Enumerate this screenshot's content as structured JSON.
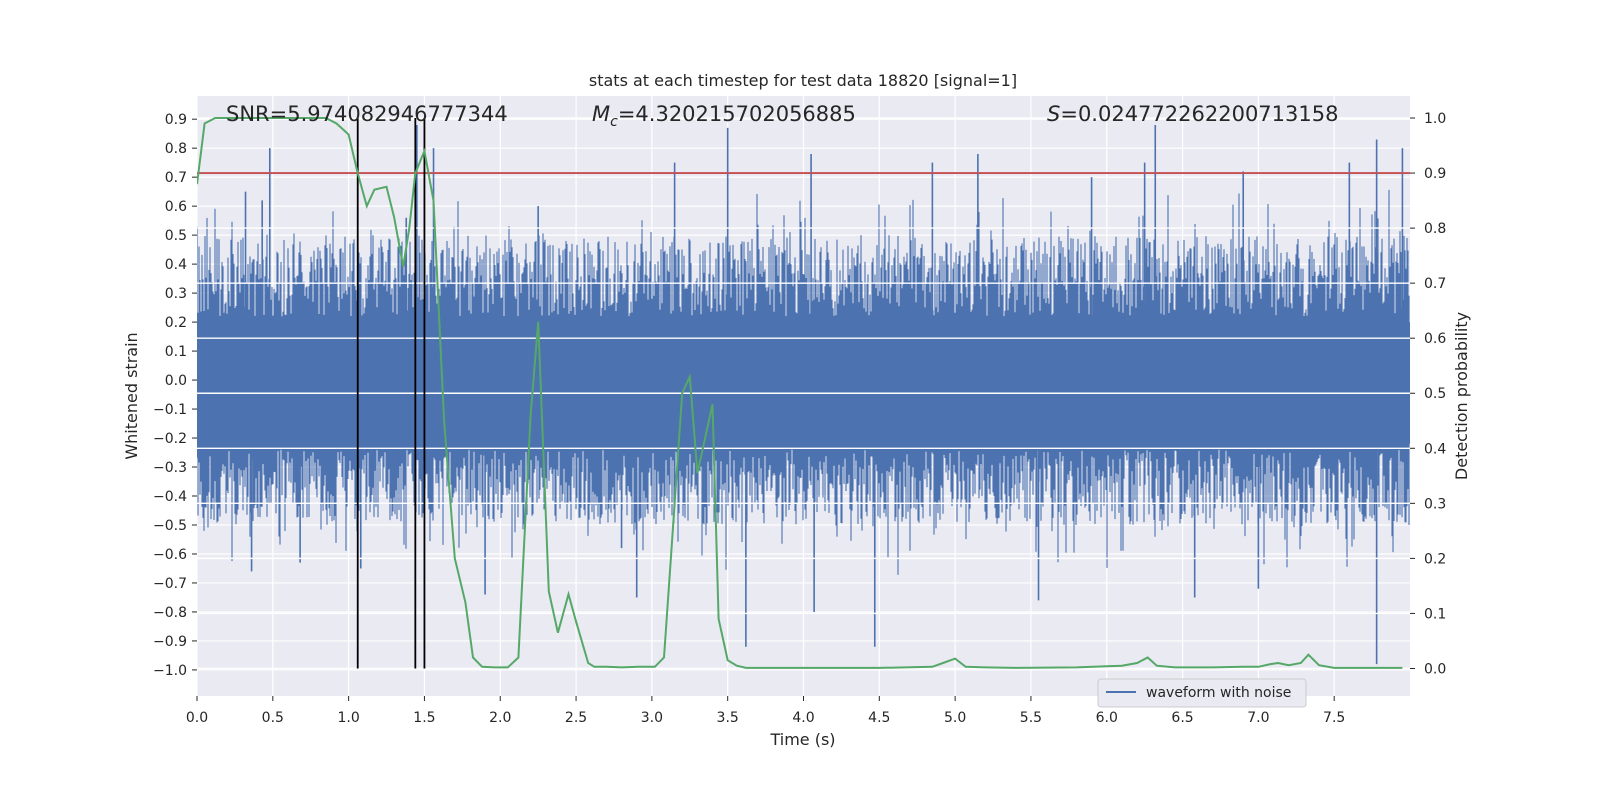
{
  "chart_data": {
    "type": "line",
    "title": "stats at each timestep for test data 18820 [signal=1]",
    "annotations": {
      "snr": "SNR=5.974082946777344",
      "mc_symbol": "M",
      "mc_subscript": "c",
      "mc_value": "=4.320215702056885",
      "s_symbol": "S",
      "s_value": "=0.024772262200713158"
    },
    "xlabel": "Time (s)",
    "ylabel_left": "Whitened strain",
    "ylabel_right": "Detection probability",
    "xlim": [
      0.0,
      8.0
    ],
    "ylim_left": [
      -1.09,
      0.98
    ],
    "ylim_right": [
      -0.05,
      1.04
    ],
    "x_ticks": [
      "0.0",
      "0.5",
      "1.0",
      "1.5",
      "2.0",
      "2.5",
      "3.0",
      "3.5",
      "4.0",
      "4.5",
      "5.0",
      "5.5",
      "6.0",
      "6.5",
      "7.0",
      "7.5"
    ],
    "x_tick_values": [
      0.0,
      0.5,
      1.0,
      1.5,
      2.0,
      2.5,
      3.0,
      3.5,
      4.0,
      4.5,
      5.0,
      5.5,
      6.0,
      6.5,
      7.0,
      7.5
    ],
    "y_ticks_left": [
      "0.9",
      "0.8",
      "0.7",
      "0.6",
      "0.5",
      "0.4",
      "0.3",
      "0.2",
      "0.1",
      "0.0",
      "−0.1",
      "−0.2",
      "−0.3",
      "−0.4",
      "−0.5",
      "−0.6",
      "−0.7",
      "−0.8",
      "−0.9",
      "−1.0"
    ],
    "y_tick_values_left": [
      0.9,
      0.8,
      0.7,
      0.6,
      0.5,
      0.4,
      0.3,
      0.2,
      0.1,
      0.0,
      -0.1,
      -0.2,
      -0.3,
      -0.4,
      -0.5,
      -0.6,
      -0.7,
      -0.8,
      -0.9,
      -1.0
    ],
    "y_ticks_right": [
      "1.0",
      "0.9",
      "0.8",
      "0.7",
      "0.6",
      "0.5",
      "0.4",
      "0.3",
      "0.2",
      "0.1",
      "0.0"
    ],
    "y_tick_values_right": [
      1.0,
      0.9,
      0.8,
      0.7,
      0.6,
      0.5,
      0.4,
      0.3,
      0.2,
      0.1,
      0.0
    ],
    "threshold": 0.9,
    "vertical_markers": [
      1.06,
      1.44,
      1.5
    ],
    "series": [
      {
        "name": "waveform with noise",
        "axis": "left",
        "color": "#4c72b0",
        "kind": "dense noisy strain, spikes",
        "spikes": [
          {
            "x": 0.32,
            "y": 0.65
          },
          {
            "x": 0.43,
            "y": 0.62
          },
          {
            "x": 0.48,
            "y": 0.8
          },
          {
            "x": 0.36,
            "y": -0.66
          },
          {
            "x": 0.68,
            "y": -0.63
          },
          {
            "x": 1.08,
            "y": -0.65
          },
          {
            "x": 1.45,
            "y": 0.88
          },
          {
            "x": 1.38,
            "y": 0.56
          },
          {
            "x": 1.56,
            "y": 0.8
          },
          {
            "x": 1.9,
            "y": -0.74
          },
          {
            "x": 2.25,
            "y": 0.6
          },
          {
            "x": 2.8,
            "y": -0.58
          },
          {
            "x": 2.9,
            "y": -0.75
          },
          {
            "x": 3.15,
            "y": 0.75
          },
          {
            "x": 3.5,
            "y": 0.87
          },
          {
            "x": 3.62,
            "y": -0.92
          },
          {
            "x": 4.05,
            "y": 0.78
          },
          {
            "x": 4.07,
            "y": -0.8
          },
          {
            "x": 4.47,
            "y": -0.92
          },
          {
            "x": 4.85,
            "y": 0.75
          },
          {
            "x": 5.15,
            "y": 0.78
          },
          {
            "x": 5.55,
            "y": -0.76
          },
          {
            "x": 6.25,
            "y": 0.75
          },
          {
            "x": 6.32,
            "y": 0.88
          },
          {
            "x": 6.58,
            "y": -0.75
          },
          {
            "x": 7.0,
            "y": -0.72
          },
          {
            "x": 7.6,
            "y": 0.75
          },
          {
            "x": 7.78,
            "y": 0.83
          },
          {
            "x": 7.78,
            "y": -0.98
          },
          {
            "x": 7.95,
            "y": 0.8
          },
          {
            "x": 5.9,
            "y": 0.7
          },
          {
            "x": 6.9,
            "y": 0.72
          }
        ]
      },
      {
        "name": "",
        "axis": "right",
        "color": "#55a868",
        "x": [
          0.0,
          0.05,
          0.12,
          0.2,
          0.4,
          0.6,
          0.8,
          0.85,
          0.92,
          1.0,
          1.06,
          1.12,
          1.17,
          1.25,
          1.3,
          1.36,
          1.4,
          1.44,
          1.5,
          1.56,
          1.63,
          1.7,
          1.77,
          1.82,
          1.88,
          1.96,
          2.05,
          2.12,
          2.2,
          2.25,
          2.32,
          2.38,
          2.45,
          2.5,
          2.58,
          2.62,
          2.7,
          2.8,
          2.9,
          3.02,
          3.08,
          3.12,
          3.2,
          3.25,
          3.3,
          3.36,
          3.4,
          3.44,
          3.5,
          3.56,
          3.62,
          3.7,
          3.8,
          3.9,
          4.0,
          4.5,
          4.85,
          4.92,
          5.0,
          5.07,
          5.2,
          5.4,
          5.8,
          6.0,
          6.1,
          6.2,
          6.27,
          6.33,
          6.45,
          6.7,
          6.9,
          7.0,
          7.08,
          7.13,
          7.2,
          7.28,
          7.33,
          7.4,
          7.5,
          7.95
        ],
        "values": [
          0.88,
          0.99,
          1.0,
          1.0,
          1.0,
          1.0,
          1.0,
          1.0,
          0.99,
          0.97,
          0.9,
          0.84,
          0.87,
          0.875,
          0.82,
          0.73,
          0.8,
          0.9,
          0.94,
          0.85,
          0.45,
          0.2,
          0.12,
          0.02,
          0.003,
          0.002,
          0.002,
          0.02,
          0.46,
          0.63,
          0.14,
          0.065,
          0.135,
          0.085,
          0.01,
          0.003,
          0.003,
          0.002,
          0.003,
          0.003,
          0.02,
          0.18,
          0.5,
          0.53,
          0.355,
          0.43,
          0.48,
          0.09,
          0.015,
          0.005,
          0.001,
          0.001,
          0.001,
          0.001,
          0.001,
          0.001,
          0.003,
          0.01,
          0.018,
          0.003,
          0.002,
          0.001,
          0.002,
          0.004,
          0.005,
          0.01,
          0.02,
          0.005,
          0.002,
          0.002,
          0.003,
          0.003,
          0.008,
          0.01,
          0.006,
          0.01,
          0.025,
          0.006,
          0.001,
          0.001
        ]
      }
    ],
    "legend": {
      "entries": [
        "waveform with noise"
      ],
      "placement": "lower-right"
    },
    "grid": true
  }
}
